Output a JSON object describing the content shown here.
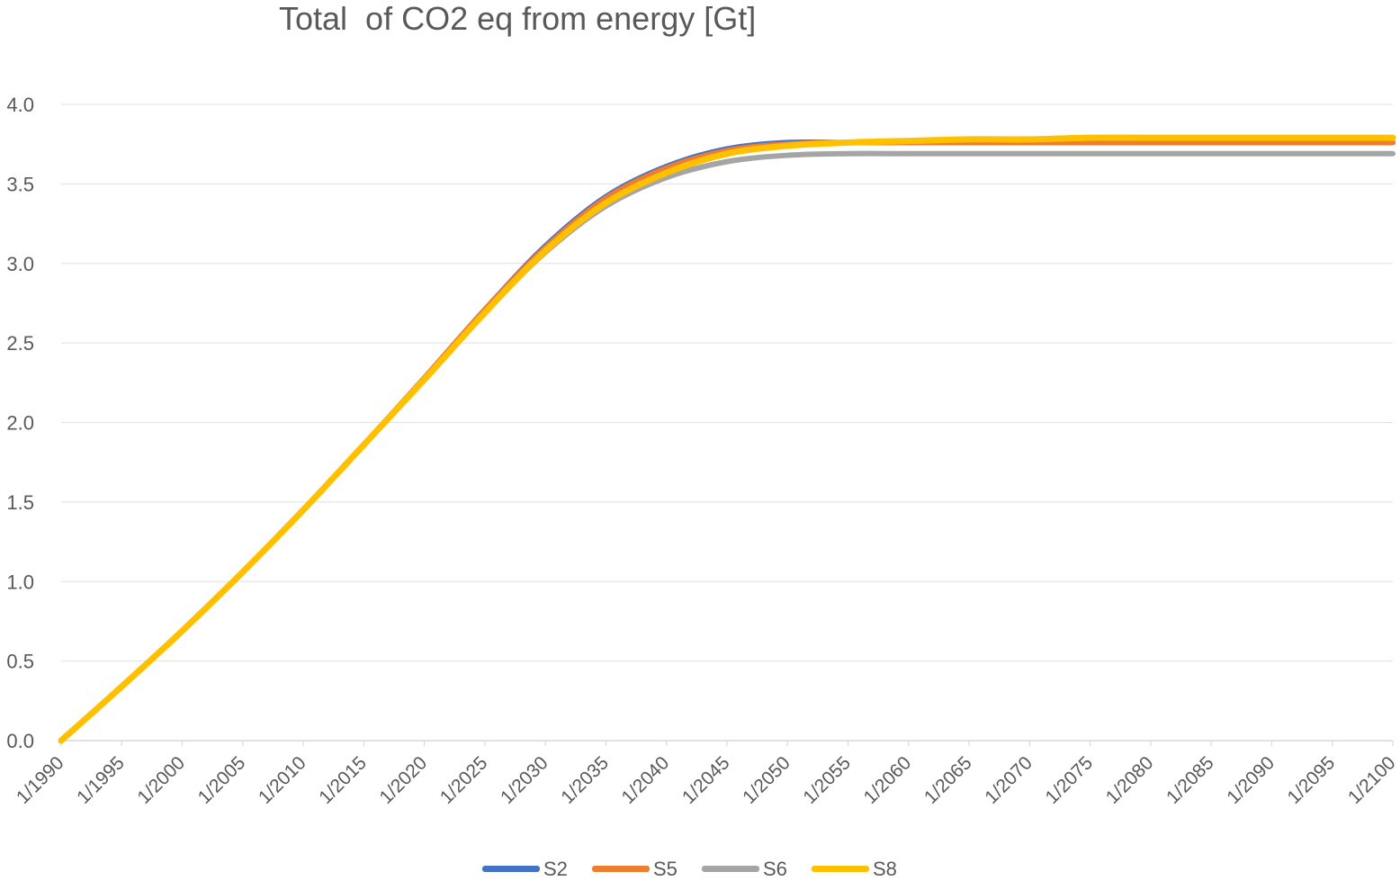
{
  "chart_data": {
    "type": "line",
    "title": "Total  of CO2 eq from energy [Gt]",
    "xlabel": "",
    "ylabel": "",
    "x_ticks": [
      "1/1990",
      "1/1995",
      "1/2000",
      "1/2005",
      "1/2010",
      "1/2015",
      "1/2020",
      "1/2025",
      "1/2030",
      "1/2035",
      "1/2040",
      "1/2045",
      "1/2050",
      "1/2055",
      "1/2060",
      "1/2065",
      "1/2070",
      "1/2075",
      "1/2080",
      "1/2085",
      "1/2090",
      "1/2095",
      "1/2100"
    ],
    "y_ticks": [
      "0.0",
      "0.5",
      "1.0",
      "1.5",
      "2.0",
      "2.5",
      "3.0",
      "3.5",
      "4.0"
    ],
    "ylim": [
      0,
      4.0
    ],
    "xlim": [
      1990,
      2100
    ],
    "grid": "horizontal",
    "legend": "bottom",
    "x": [
      1990,
      1995,
      2000,
      2005,
      2010,
      2015,
      2020,
      2025,
      2030,
      2035,
      2040,
      2045,
      2050,
      2055,
      2060,
      2065,
      2070,
      2075,
      2080,
      2085,
      2090,
      2095,
      2100
    ],
    "series": [
      {
        "name": "S2",
        "color": "#4472C4",
        "values": [
          0.0,
          0.34,
          0.69,
          1.06,
          1.45,
          1.86,
          2.28,
          2.71,
          3.11,
          3.42,
          3.61,
          3.72,
          3.76,
          3.76,
          3.76,
          3.76,
          3.76,
          3.76,
          3.76,
          3.76,
          3.76,
          3.76,
          3.76
        ]
      },
      {
        "name": "S5",
        "color": "#ED7D31",
        "values": [
          0.0,
          0.34,
          0.69,
          1.06,
          1.45,
          1.86,
          2.28,
          2.71,
          3.1,
          3.41,
          3.6,
          3.71,
          3.75,
          3.76,
          3.76,
          3.76,
          3.76,
          3.76,
          3.76,
          3.76,
          3.76,
          3.76,
          3.76
        ]
      },
      {
        "name": "S6",
        "color": "#A5A5A5",
        "values": [
          0.0,
          0.34,
          0.69,
          1.06,
          1.45,
          1.86,
          2.27,
          2.69,
          3.07,
          3.36,
          3.54,
          3.64,
          3.68,
          3.69,
          3.69,
          3.69,
          3.69,
          3.69,
          3.69,
          3.69,
          3.69,
          3.69,
          3.69
        ]
      },
      {
        "name": "S8",
        "color": "#FFC000",
        "values": [
          0.0,
          0.34,
          0.69,
          1.06,
          1.45,
          1.86,
          2.27,
          2.69,
          3.08,
          3.38,
          3.57,
          3.69,
          3.74,
          3.76,
          3.77,
          3.78,
          3.78,
          3.79,
          3.79,
          3.79,
          3.79,
          3.79,
          3.79
        ]
      }
    ]
  }
}
